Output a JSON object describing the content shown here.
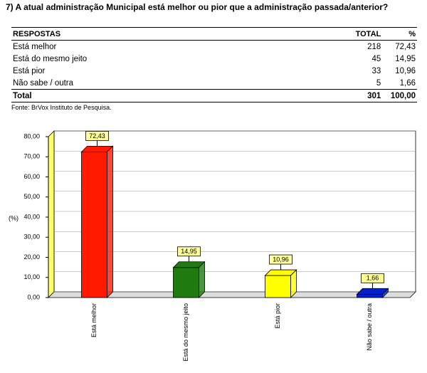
{
  "title": "7) A atual administração Municipal está melhor ou pior que a administração passada/anterior?",
  "table": {
    "header": [
      "RESPOSTAS",
      "TOTAL",
      "%"
    ],
    "rows": [
      [
        "Está melhor",
        "218",
        "72,43"
      ],
      [
        "Está do mesmo jeito",
        "45",
        "14,95"
      ],
      [
        "Está pior",
        "33",
        "10,96"
      ],
      [
        "Não sabe / outra",
        "5",
        "1,66"
      ]
    ],
    "total": [
      "Total",
      "301",
      "100,00"
    ]
  },
  "source": "Fonte: BrVox Instituto de Pesquisa.",
  "chart_data": {
    "type": "bar3d",
    "y_label": "(%)",
    "categories": [
      "Está melhor",
      "Está do mesmo jeito",
      "Está pior",
      "Não sabe / outra"
    ],
    "values": [
      72.43,
      14.95,
      10.96,
      1.66
    ],
    "value_labels": [
      "72,43",
      "14,95",
      "10,96",
      "1,66"
    ],
    "colors": [
      "#ff1a00",
      "#1f7a10",
      "#ffff00",
      "#0022cc"
    ],
    "ylim": [
      0,
      80
    ],
    "yticks": [
      {
        "value": 0,
        "label": "0,00"
      },
      {
        "value": 10,
        "label": "10,00"
      },
      {
        "value": 20,
        "label": "20,00"
      },
      {
        "value": 30,
        "label": "30,00"
      },
      {
        "value": 40,
        "label": "40,00"
      },
      {
        "value": 50,
        "label": "50,00"
      },
      {
        "value": 60,
        "label": "60,00"
      },
      {
        "value": 70,
        "label": "70,00"
      },
      {
        "value": 80,
        "label": "80,00"
      }
    ],
    "grid": true
  }
}
